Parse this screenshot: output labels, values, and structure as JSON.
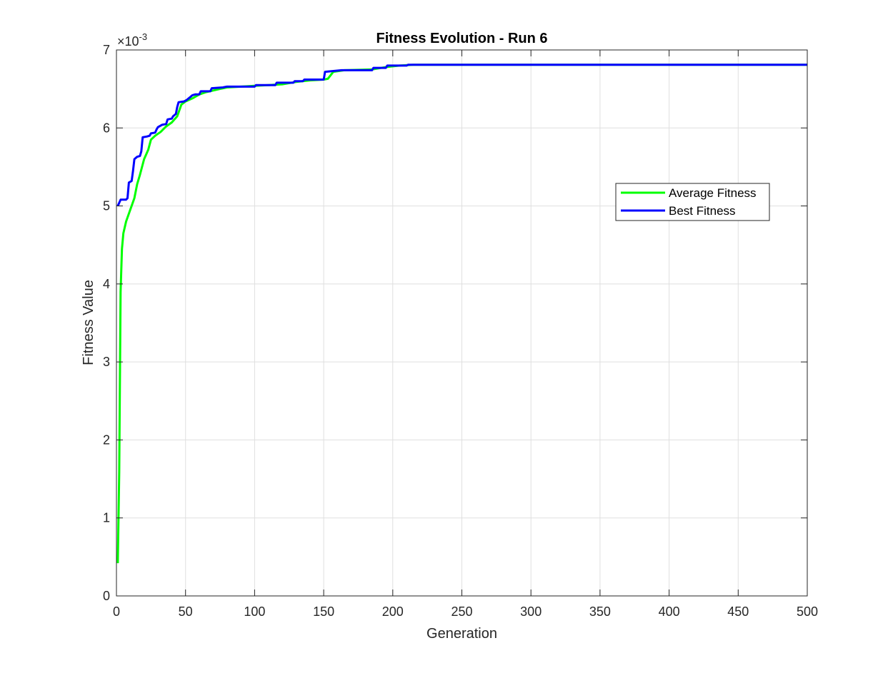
{
  "chart_data": {
    "type": "line",
    "title": "Fitness Evolution - Run 6",
    "xlabel": "Generation",
    "ylabel": "Fitness Value",
    "exponent_label": "×10",
    "exponent_power": "-3",
    "xlim": [
      0,
      500
    ],
    "ylim": [
      0,
      7
    ],
    "y_scale_note": "values in units of 1e-3",
    "xticks": [
      0,
      50,
      100,
      150,
      200,
      250,
      300,
      350,
      400,
      450,
      500
    ],
    "yticks": [
      0,
      1,
      2,
      3,
      4,
      5,
      6,
      7
    ],
    "grid": true,
    "legend_position": "right, upper-middle",
    "series": [
      {
        "name": "Average Fitness",
        "color": "#00ff00",
        "points": [
          [
            1,
            0.42
          ],
          [
            2,
            1.6
          ],
          [
            3,
            3.9
          ],
          [
            4,
            4.45
          ],
          [
            5,
            4.65
          ],
          [
            7,
            4.8
          ],
          [
            10,
            4.95
          ],
          [
            13,
            5.1
          ],
          [
            15,
            5.28
          ],
          [
            17,
            5.4
          ],
          [
            20,
            5.6
          ],
          [
            23,
            5.72
          ],
          [
            25,
            5.85
          ],
          [
            28,
            5.9
          ],
          [
            32,
            5.95
          ],
          [
            36,
            6.02
          ],
          [
            40,
            6.07
          ],
          [
            44,
            6.15
          ],
          [
            47,
            6.3
          ],
          [
            50,
            6.34
          ],
          [
            55,
            6.38
          ],
          [
            60,
            6.43
          ],
          [
            65,
            6.46
          ],
          [
            70,
            6.48
          ],
          [
            75,
            6.5
          ],
          [
            80,
            6.52
          ],
          [
            90,
            6.53
          ],
          [
            100,
            6.54
          ],
          [
            110,
            6.55
          ],
          [
            120,
            6.56
          ],
          [
            130,
            6.59
          ],
          [
            140,
            6.61
          ],
          [
            150,
            6.62
          ],
          [
            153,
            6.63
          ],
          [
            157,
            6.72
          ],
          [
            165,
            6.74
          ],
          [
            185,
            6.75
          ],
          [
            195,
            6.78
          ],
          [
            205,
            6.8
          ],
          [
            215,
            6.81
          ],
          [
            500,
            6.81
          ]
        ]
      },
      {
        "name": "Best Fitness",
        "color": "#0000ff",
        "points": [
          [
            1,
            5.0
          ],
          [
            3,
            5.08
          ],
          [
            7,
            5.08
          ],
          [
            8,
            5.1
          ],
          [
            9,
            5.3
          ],
          [
            11,
            5.32
          ],
          [
            12,
            5.45
          ],
          [
            13,
            5.6
          ],
          [
            15,
            5.63
          ],
          [
            17,
            5.64
          ],
          [
            18,
            5.7
          ],
          [
            19,
            5.88
          ],
          [
            22,
            5.89
          ],
          [
            24,
            5.9
          ],
          [
            25,
            5.93
          ],
          [
            28,
            5.94
          ],
          [
            29,
            5.98
          ],
          [
            30,
            6.01
          ],
          [
            33,
            6.04
          ],
          [
            36,
            6.05
          ],
          [
            37,
            6.11
          ],
          [
            40,
            6.12
          ],
          [
            41,
            6.15
          ],
          [
            43,
            6.18
          ],
          [
            44,
            6.27
          ],
          [
            45,
            6.33
          ],
          [
            49,
            6.34
          ],
          [
            51,
            6.36
          ],
          [
            53,
            6.39
          ],
          [
            55,
            6.42
          ],
          [
            57,
            6.43
          ],
          [
            60,
            6.43
          ],
          [
            61,
            6.47
          ],
          [
            68,
            6.47
          ],
          [
            69,
            6.51
          ],
          [
            77,
            6.52
          ],
          [
            80,
            6.53
          ],
          [
            100,
            6.53
          ],
          [
            101,
            6.55
          ],
          [
            115,
            6.55
          ],
          [
            116,
            6.58
          ],
          [
            128,
            6.58
          ],
          [
            129,
            6.6
          ],
          [
            135,
            6.6
          ],
          [
            136,
            6.62
          ],
          [
            150,
            6.62
          ],
          [
            151,
            6.72
          ],
          [
            157,
            6.73
          ],
          [
            163,
            6.74
          ],
          [
            185,
            6.74
          ],
          [
            186,
            6.77
          ],
          [
            195,
            6.77
          ],
          [
            196,
            6.8
          ],
          [
            210,
            6.8
          ],
          [
            211,
            6.81
          ],
          [
            500,
            6.81
          ]
        ]
      }
    ]
  }
}
